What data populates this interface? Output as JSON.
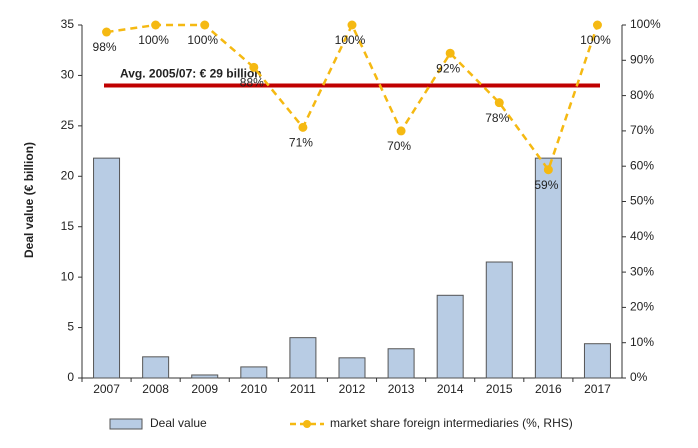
{
  "chart_data": {
    "type": "bar",
    "y_label": "Deal value (€ billion)",
    "categories": [
      "2007",
      "2008",
      "2009",
      "2010",
      "2011",
      "2012",
      "2013",
      "2014",
      "2015",
      "2016",
      "2017"
    ],
    "series": [
      {
        "name": "Deal value",
        "type": "bar",
        "color": "#b8cce4",
        "values": [
          21.8,
          2.1,
          0.3,
          1.1,
          4.0,
          2.0,
          2.9,
          8.2,
          11.5,
          21.8,
          3.4
        ]
      },
      {
        "name": "market share foreign intermediaries (%, RHS)",
        "type": "line",
        "axis": "y2",
        "color": "#f5b912",
        "values": [
          98,
          100,
          100,
          88,
          71,
          100,
          70,
          92,
          78,
          59,
          100
        ],
        "value_labels": [
          "98%",
          "100%",
          "100%",
          "88%",
          "71%",
          "100%",
          "70%",
          "92%",
          "78%",
          "59%",
          "100%"
        ]
      }
    ],
    "reference_line": {
      "value": 29,
      "label": "Avg. 2005/07: € 29 billion",
      "color": "#c00000"
    },
    "ylim": [
      0,
      35
    ],
    "yticks": [
      0,
      5,
      10,
      15,
      20,
      25,
      30,
      35
    ],
    "y2lim": [
      0,
      100
    ],
    "y2ticks": [
      {
        "value": 0,
        "label": "0%"
      },
      {
        "value": 10,
        "label": "10%"
      },
      {
        "value": 20,
        "label": "20%"
      },
      {
        "value": 30,
        "label": "30%"
      },
      {
        "value": 40,
        "label": "40%"
      },
      {
        "value": 50,
        "label": "50%"
      },
      {
        "value": 60,
        "label": "60%"
      },
      {
        "value": 70,
        "label": "70%"
      },
      {
        "value": 80,
        "label": "80%"
      },
      {
        "value": 90,
        "label": "90%"
      },
      {
        "value": 100,
        "label": "100%"
      }
    ]
  }
}
